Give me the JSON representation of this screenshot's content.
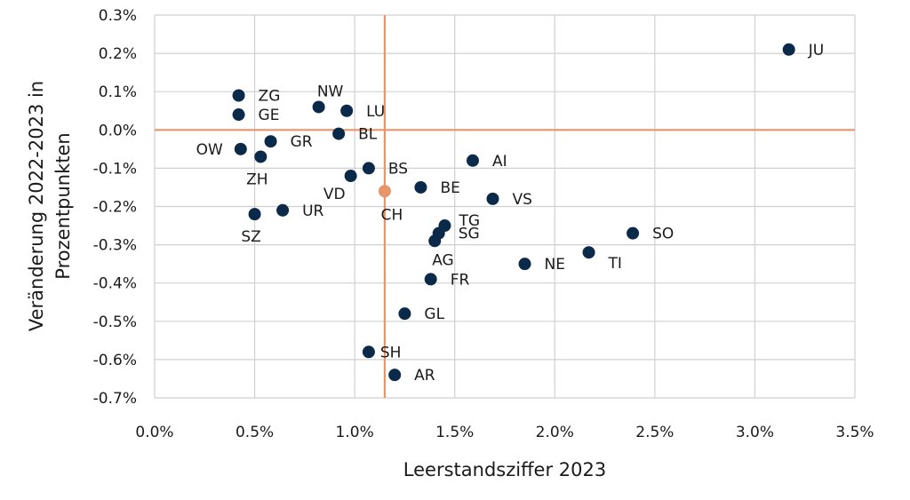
{
  "chart_data": {
    "type": "scatter",
    "xlabel": "Leerstandsziffer 2023",
    "ylabel_lines": [
      "Veränderung 2022-2023 in",
      "Prozentpunkten"
    ],
    "xlim": [
      0.0,
      3.5
    ],
    "ylim": [
      -0.7,
      0.3
    ],
    "x_ticks": [
      0.0,
      0.5,
      1.0,
      1.5,
      2.0,
      2.5,
      3.0,
      3.5
    ],
    "y_ticks": [
      0.3,
      0.2,
      0.1,
      0.0,
      -0.1,
      -0.2,
      -0.3,
      -0.4,
      -0.5,
      -0.6,
      -0.7
    ],
    "x_tick_labels": [
      "0.0%",
      "0.5%",
      "1.0%",
      "1.5%",
      "2.0%",
      "2.5%",
      "3.0%",
      "3.5%"
    ],
    "y_tick_labels": [
      "0.3%",
      "0.2%",
      "0.1%",
      "0.0%",
      "-0.1%",
      "-0.2%",
      "-0.3%",
      "-0.4%",
      "-0.5%",
      "-0.6%",
      "-0.7%"
    ],
    "grid": true,
    "colors": {
      "points": "#0b2a4a",
      "reference": "#e8956a",
      "grid": "#d0d0d0"
    },
    "reference": {
      "label": "CH",
      "x": 1.15,
      "y": -0.16
    },
    "points": [
      {
        "label": "JU",
        "x": 3.17,
        "y": 0.21,
        "pos": "right"
      },
      {
        "label": "ZG",
        "x": 0.42,
        "y": 0.09,
        "pos": "right"
      },
      {
        "label": "GE",
        "x": 0.42,
        "y": 0.04,
        "pos": "right"
      },
      {
        "label": "NW",
        "x": 0.82,
        "y": 0.06,
        "pos": "above"
      },
      {
        "label": "LU",
        "x": 0.96,
        "y": 0.05,
        "pos": "right"
      },
      {
        "label": "BL",
        "x": 0.92,
        "y": -0.01,
        "pos": "right"
      },
      {
        "label": "GR",
        "x": 0.58,
        "y": -0.03,
        "pos": "right"
      },
      {
        "label": "OW",
        "x": 0.43,
        "y": -0.05,
        "pos": "left"
      },
      {
        "label": "ZH",
        "x": 0.53,
        "y": -0.07,
        "pos": "below"
      },
      {
        "label": "BS",
        "x": 1.07,
        "y": -0.1,
        "pos": "right"
      },
      {
        "label": "VD",
        "x": 0.98,
        "y": -0.12,
        "pos": "below-left"
      },
      {
        "label": "AI",
        "x": 1.59,
        "y": -0.08,
        "pos": "right"
      },
      {
        "label": "BE",
        "x": 1.33,
        "y": -0.15,
        "pos": "right"
      },
      {
        "label": "VS",
        "x": 1.69,
        "y": -0.18,
        "pos": "right"
      },
      {
        "label": "UR",
        "x": 0.64,
        "y": -0.21,
        "pos": "right"
      },
      {
        "label": "SZ",
        "x": 0.5,
        "y": -0.22,
        "pos": "below"
      },
      {
        "label": "TG",
        "x": 1.45,
        "y": -0.25,
        "pos": "right-up"
      },
      {
        "label": "SG",
        "x": 1.42,
        "y": -0.27,
        "pos": "right"
      },
      {
        "label": "AG",
        "x": 1.4,
        "y": -0.29,
        "pos": "below-right"
      },
      {
        "label": "SO",
        "x": 2.39,
        "y": -0.27,
        "pos": "right"
      },
      {
        "label": "TI",
        "x": 2.17,
        "y": -0.32,
        "pos": "right-down"
      },
      {
        "label": "NE",
        "x": 1.85,
        "y": -0.35,
        "pos": "right"
      },
      {
        "label": "FR",
        "x": 1.38,
        "y": -0.39,
        "pos": "right"
      },
      {
        "label": "GL",
        "x": 1.25,
        "y": -0.48,
        "pos": "right"
      },
      {
        "label": "SH",
        "x": 1.07,
        "y": -0.58,
        "pos": "right-tight"
      },
      {
        "label": "AR",
        "x": 1.2,
        "y": -0.64,
        "pos": "right"
      }
    ]
  }
}
